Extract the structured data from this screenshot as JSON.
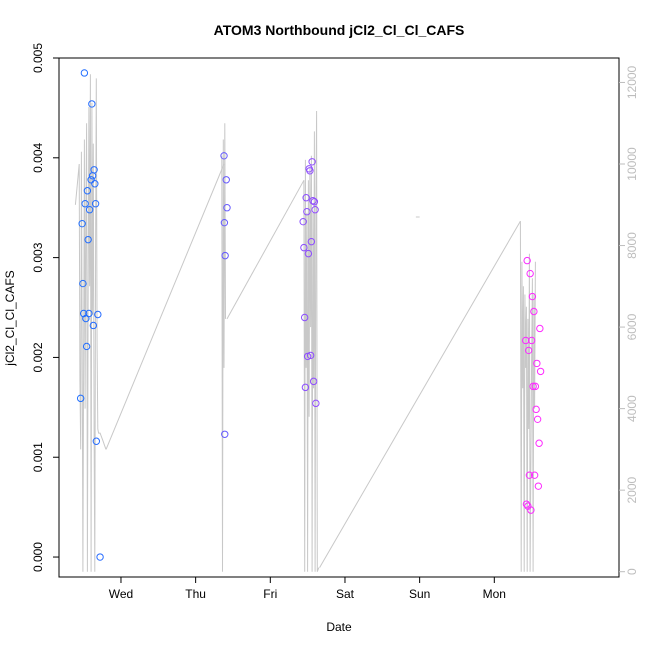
{
  "chart_data": {
    "type": "scatter",
    "title": "ATOM3 Northbound jCl2_Cl_Cl_CAFS",
    "xlabel": "Date",
    "ylabel": "jCl2_Cl_Cl_CAFS",
    "x_unit": "days since Tue 00:00",
    "xlim": [
      0.17,
      7.67
    ],
    "ylim": [
      -0.0002,
      0.005
    ],
    "x_ticks": [
      {
        "label": "Wed",
        "value": 1
      },
      {
        "label": "Thu",
        "value": 2
      },
      {
        "label": "Fri",
        "value": 3
      },
      {
        "label": "Sat",
        "value": 4
      },
      {
        "label": "Sun",
        "value": 5
      },
      {
        "label": "Mon",
        "value": 6
      }
    ],
    "y_ticks": [
      "0.000",
      "0.001",
      "0.002",
      "0.003",
      "0.004",
      "0.005"
    ],
    "y2_axis": {
      "color": "#bdbdbd",
      "ylim": [
        -130,
        12600
      ],
      "ticks": [
        "0",
        "2000",
        "4000",
        "6000",
        "8000",
        "10000",
        "12000"
      ],
      "series": {
        "name": "altitude",
        "color": "#c8c8c8",
        "points": [
          [
            0.39,
            9000
          ],
          [
            0.42,
            9600
          ],
          [
            0.44,
            10000
          ],
          [
            0.45,
            4700
          ],
          [
            0.46,
            3000
          ],
          [
            0.47,
            10300
          ],
          [
            0.48,
            6200
          ],
          [
            0.49,
            0
          ],
          [
            0.51,
            10600
          ],
          [
            0.52,
            4000
          ],
          [
            0.53,
            8800
          ],
          [
            0.54,
            11000
          ],
          [
            0.55,
            0
          ],
          [
            0.56,
            6500
          ],
          [
            0.57,
            11400
          ],
          [
            0.58,
            7000
          ],
          [
            0.59,
            12200
          ],
          [
            0.6,
            0
          ],
          [
            0.61,
            11500
          ],
          [
            0.62,
            6300
          ],
          [
            0.63,
            10500
          ],
          [
            0.64,
            3500
          ],
          [
            0.65,
            0
          ],
          [
            0.66,
            8000
          ],
          [
            0.67,
            12100
          ],
          [
            0.68,
            5500
          ],
          [
            0.69,
            3500
          ],
          [
            0.7,
            3400
          ],
          [
            0.72,
            3400
          ],
          [
            0.74,
            3300
          ],
          [
            0.76,
            3200
          ],
          [
            0.78,
            3100
          ],
          [
            0.8,
            3000
          ],
          [
            2.35,
            10200
          ],
          [
            2.36,
            0
          ],
          [
            2.37,
            10600
          ],
          [
            2.38,
            5000
          ],
          [
            2.39,
            11000
          ],
          [
            2.4,
            6200
          ],
          [
            2.4,
            6200
          ],
          [
            3.45,
            9600
          ],
          [
            3.46,
            0
          ],
          [
            3.47,
            10100
          ],
          [
            3.48,
            5000
          ],
          [
            3.49,
            8800
          ],
          [
            3.5,
            0
          ],
          [
            3.51,
            9600
          ],
          [
            3.52,
            3800
          ],
          [
            3.53,
            9900
          ],
          [
            3.54,
            6000
          ],
          [
            3.55,
            10200
          ],
          [
            3.56,
            0
          ],
          [
            3.57,
            8800
          ],
          [
            3.58,
            4500
          ],
          [
            3.59,
            10800
          ],
          [
            3.6,
            0
          ],
          [
            3.61,
            9000
          ],
          [
            3.62,
            11300
          ],
          [
            3.63,
            0
          ],
          [
            3.65,
            100
          ],
          [
            4.95,
            8700
          ],
          [
            5.0,
            8700
          ],
          [
            6.35,
            8600
          ],
          [
            6.36,
            0
          ],
          [
            6.37,
            7600
          ],
          [
            6.38,
            4500
          ],
          [
            6.39,
            7000
          ],
          [
            6.4,
            0
          ],
          [
            6.41,
            6800
          ],
          [
            6.42,
            5000
          ],
          [
            6.43,
            6500
          ],
          [
            6.44,
            0
          ],
          [
            6.45,
            6200
          ],
          [
            6.46,
            3500
          ],
          [
            6.47,
            7800
          ],
          [
            6.48,
            0
          ],
          [
            6.5,
            5200
          ],
          [
            6.51,
            7200
          ],
          [
            6.52,
            0
          ],
          [
            6.53,
            6800
          ],
          [
            6.54,
            4000
          ],
          [
            6.55,
            7600
          ]
        ],
        "line_segments": [
          [
            [
              0.8,
              3000
            ],
            [
              2.38,
              10000
            ]
          ],
          [
            [
              2.42,
              6200
            ],
            [
              3.45,
              9600
            ]
          ],
          [
            [
              3.66,
              100
            ],
            [
              6.35,
              8600
            ]
          ]
        ]
      }
    },
    "series": [
      {
        "name": "jCl2_Cl_Cl_CAFS",
        "marker": "open-circle",
        "color_gradient": [
          "#1f6fff",
          "#ff2bff"
        ],
        "points": [
          [
            0.46,
            0.00159
          ],
          [
            0.48,
            0.00334
          ],
          [
            0.49,
            0.00274
          ],
          [
            0.5,
            0.00244
          ],
          [
            0.51,
            0.00485
          ],
          [
            0.52,
            0.00354
          ],
          [
            0.53,
            0.00239
          ],
          [
            0.54,
            0.00211
          ],
          [
            0.55,
            0.00367
          ],
          [
            0.56,
            0.00318
          ],
          [
            0.57,
            0.00244
          ],
          [
            0.58,
            0.00348
          ],
          [
            0.6,
            0.00378
          ],
          [
            0.61,
            0.00454
          ],
          [
            0.62,
            0.00382
          ],
          [
            0.63,
            0.00232
          ],
          [
            0.64,
            0.00388
          ],
          [
            0.65,
            0.00374
          ],
          [
            0.66,
            0.00354
          ],
          [
            0.67,
            0.00116
          ],
          [
            0.69,
            0.00243
          ],
          [
            0.72,
            0.0
          ],
          [
            2.38,
            0.00402
          ],
          [
            2.385,
            0.00335
          ],
          [
            2.39,
            0.00123
          ],
          [
            2.395,
            0.00302
          ],
          [
            2.41,
            0.00378
          ],
          [
            2.42,
            0.0035
          ],
          [
            3.44,
            0.00336
          ],
          [
            3.45,
            0.0031
          ],
          [
            3.46,
            0.0024
          ],
          [
            3.47,
            0.0017
          ],
          [
            3.48,
            0.0036
          ],
          [
            3.49,
            0.00346
          ],
          [
            3.5,
            0.00201
          ],
          [
            3.51,
            0.00304
          ],
          [
            3.52,
            0.00389
          ],
          [
            3.53,
            0.00387
          ],
          [
            3.54,
            0.00202
          ],
          [
            3.55,
            0.00316
          ],
          [
            3.56,
            0.00396
          ],
          [
            3.57,
            0.00357
          ],
          [
            3.58,
            0.00176
          ],
          [
            3.59,
            0.00356
          ],
          [
            3.6,
            0.00348
          ],
          [
            3.61,
            0.00154
          ],
          [
            6.42,
            0.00217
          ],
          [
            6.43,
            0.00053
          ],
          [
            6.44,
            0.00297
          ],
          [
            6.45,
            0.00051
          ],
          [
            6.46,
            0.00207
          ],
          [
            6.47,
            0.00082
          ],
          [
            6.48,
            0.00284
          ],
          [
            6.49,
            0.00047
          ],
          [
            6.5,
            0.00217
          ],
          [
            6.51,
            0.00261
          ],
          [
            6.52,
            0.00171
          ],
          [
            6.53,
            0.00246
          ],
          [
            6.54,
            0.00082
          ],
          [
            6.55,
            0.00171
          ],
          [
            6.56,
            0.00148
          ],
          [
            6.57,
            0.00194
          ],
          [
            6.58,
            0.00138
          ],
          [
            6.59,
            0.00071
          ],
          [
            6.6,
            0.00114
          ],
          [
            6.61,
            0.00229
          ],
          [
            6.62,
            0.00186
          ]
        ]
      }
    ]
  }
}
